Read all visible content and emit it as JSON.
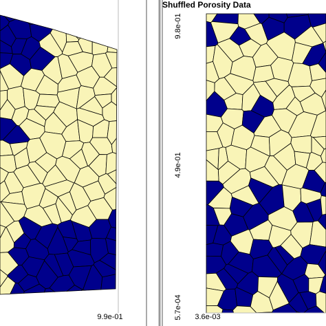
{
  "left_panel": {
    "x_tick_label": "9.9e-01"
  },
  "right_panel": {
    "title": "Shuffled Porosity Data",
    "y_tick_labels": [
      "9.8e-01",
      "4.9e-01",
      "5.7e-04"
    ],
    "x_tick_label": "3.6e-03"
  }
}
